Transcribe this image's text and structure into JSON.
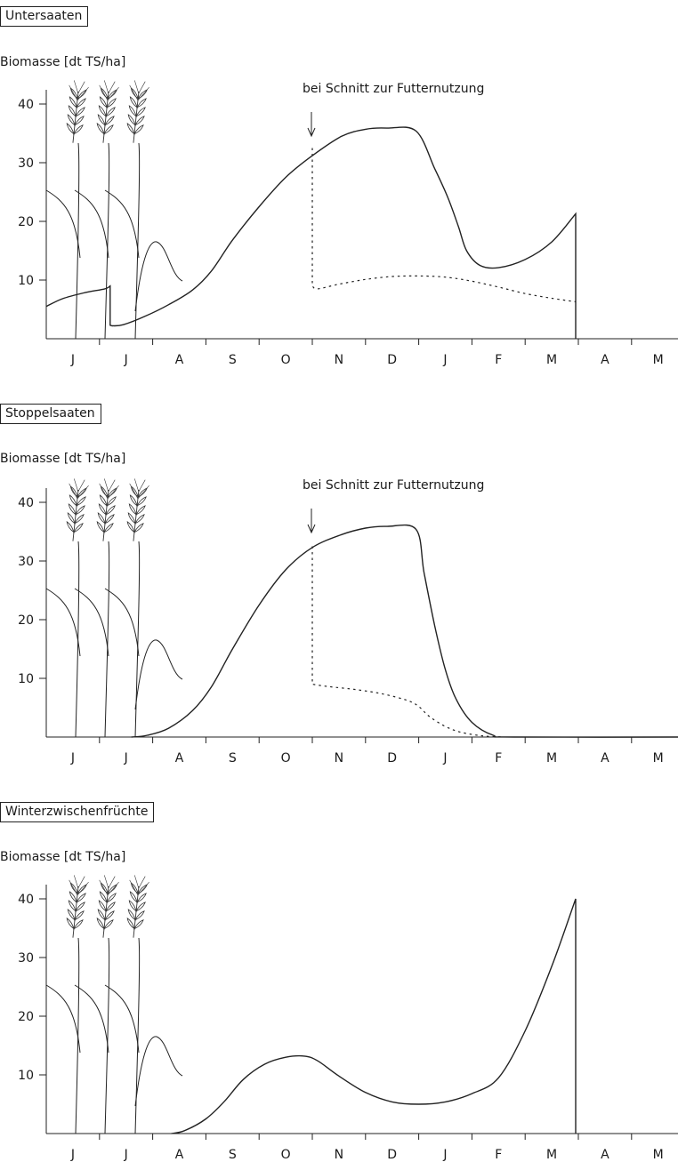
{
  "chart_data": [
    {
      "type": "line",
      "title": "Untersaaten",
      "ylabel": "Biomasse [dt TS/ha]",
      "annotation": "bei Schnitt zur Futternutzung",
      "categories": [
        "J",
        "J",
        "A",
        "S",
        "O",
        "N",
        "D",
        "J",
        "F",
        "M",
        "A",
        "M"
      ],
      "yticks": [
        10,
        20,
        30,
        40
      ],
      "ylim": [
        0,
        42
      ],
      "grid": false,
      "legend": "none",
      "series": [
        {
          "style": "solid",
          "x": [
            0,
            0.3,
            0.7,
            1.1,
            1.2,
            1.2,
            1.25,
            1.45,
            1.85,
            2.3,
            2.75,
            3.1,
            3.5,
            4.0,
            4.5,
            5.0,
            5.55,
            6.0,
            6.4,
            6.95,
            7.3,
            7.55,
            7.75,
            7.9,
            8.15,
            8.5,
            9.0,
            9.5,
            9.95,
            9.95
          ],
          "y": [
            5.5,
            6.8,
            7.8,
            8.5,
            9.0,
            2.3,
            2.2,
            2.4,
            3.8,
            5.8,
            8.3,
            11.5,
            16.8,
            22.5,
            27.5,
            31.2,
            34.5,
            35.7,
            35.9,
            35.4,
            29.0,
            24.0,
            19.0,
            15.0,
            12.5,
            12.1,
            13.5,
            16.5,
            21.3,
            0
          ]
        },
        {
          "style": "dotted",
          "x": [
            5.0,
            5.0,
            5.1,
            5.5,
            6.0,
            6.5,
            7.0,
            7.5,
            8.0,
            8.5,
            9.0,
            9.5,
            9.95
          ],
          "y": [
            32.5,
            9.0,
            8.5,
            9.3,
            10.1,
            10.6,
            10.7,
            10.5,
            9.8,
            8.8,
            7.7,
            6.9,
            6.3
          ]
        }
      ]
    },
    {
      "type": "line",
      "title": "Stoppelsaaten",
      "ylabel": "Biomasse [dt TS/ha]",
      "annotation": "bei Schnitt zur Futternutzung",
      "categories": [
        "J",
        "J",
        "A",
        "S",
        "O",
        "N",
        "D",
        "J",
        "F",
        "M",
        "A",
        "M"
      ],
      "yticks": [
        10,
        20,
        30,
        40
      ],
      "ylim": [
        0,
        42
      ],
      "grid": false,
      "legend": "none",
      "series": [
        {
          "style": "solid",
          "x": [
            1.6,
            1.9,
            2.3,
            2.75,
            3.1,
            3.5,
            4.0,
            4.5,
            5.0,
            5.55,
            6.0,
            6.4,
            6.95,
            7.1,
            7.3,
            7.5,
            7.7,
            8.0,
            8.4,
            8.8,
            12.0
          ],
          "y": [
            0,
            0.3,
            1.5,
            4.5,
            8.5,
            15.0,
            22.5,
            28.5,
            32.3,
            34.5,
            35.6,
            35.9,
            35.4,
            28.0,
            19.0,
            11.5,
            6.5,
            2.5,
            0.3,
            0,
            0
          ]
        },
        {
          "style": "dotted",
          "x": [
            5.0,
            5.0,
            5.3,
            5.8,
            6.3,
            6.8,
            7.0,
            7.2,
            7.5,
            7.8,
            8.2,
            8.6
          ],
          "y": [
            32.5,
            9.0,
            8.6,
            8.1,
            7.4,
            6.2,
            5.2,
            3.5,
            1.8,
            0.8,
            0.2,
            0
          ]
        }
      ]
    },
    {
      "type": "line",
      "title": "Winterzwischenfrüchte",
      "ylabel": "Biomasse [dt TS/ha]",
      "categories": [
        "J",
        "J",
        "A",
        "S",
        "O",
        "N",
        "D",
        "J",
        "F",
        "M",
        "A",
        "M"
      ],
      "yticks": [
        10,
        20,
        30,
        40
      ],
      "ylim": [
        0,
        42
      ],
      "grid": false,
      "legend": "none",
      "series": [
        {
          "style": "solid",
          "x": [
            2.35,
            2.6,
            3.0,
            3.35,
            3.7,
            4.1,
            4.5,
            4.85,
            5.1,
            5.5,
            6.0,
            6.5,
            7.0,
            7.5,
            8.0,
            8.5,
            9.0,
            9.5,
            9.95,
            9.95
          ],
          "y": [
            0,
            0.5,
            2.5,
            5.5,
            9.2,
            11.8,
            13.0,
            13.2,
            12.4,
            9.8,
            7.0,
            5.4,
            5.0,
            5.4,
            6.8,
            9.5,
            17.5,
            28.5,
            40.0,
            0
          ]
        }
      ]
    }
  ]
}
